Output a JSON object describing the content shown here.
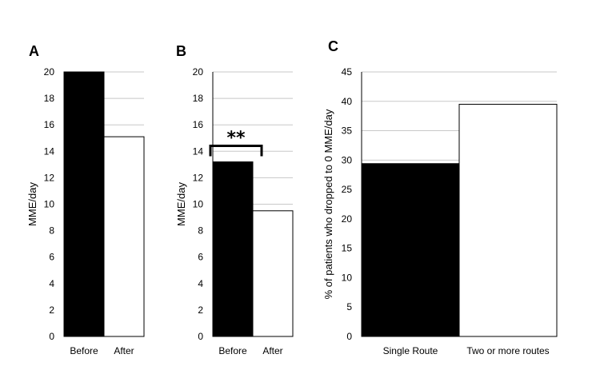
{
  "chart_data": [
    {
      "type": "bar",
      "panel_label": "A",
      "categories": [
        "Before",
        "After"
      ],
      "values": [
        20,
        15.1
      ],
      "ylabel": "MME/day",
      "xlabel": "",
      "ylim": [
        0,
        20
      ],
      "yticks": [
        0,
        2,
        4,
        6,
        8,
        10,
        12,
        14,
        16,
        18,
        20
      ],
      "bar_colors": [
        "#000000",
        "#ffffff"
      ],
      "grid": true,
      "significance": ""
    },
    {
      "type": "bar",
      "panel_label": "B",
      "categories": [
        "Before",
        "After"
      ],
      "values": [
        13.2,
        9.5
      ],
      "ylabel": "MME/day",
      "xlabel": "",
      "ylim": [
        0,
        20
      ],
      "yticks": [
        0,
        2,
        4,
        6,
        8,
        10,
        12,
        14,
        16,
        18,
        20
      ],
      "bar_colors": [
        "#000000",
        "#ffffff"
      ],
      "grid": true,
      "significance": "**"
    },
    {
      "type": "bar",
      "panel_label": "C",
      "categories": [
        "Single Route",
        "Two or more routes"
      ],
      "values": [
        29.4,
        39.5
      ],
      "ylabel": "% of patients who dropped to 0 MME/day",
      "xlabel": "",
      "ylim": [
        0,
        45
      ],
      "yticks": [
        0,
        5,
        10,
        15,
        20,
        25,
        30,
        35,
        40,
        45
      ],
      "bar_colors": [
        "#000000",
        "#ffffff"
      ],
      "grid": true,
      "significance": ""
    }
  ]
}
